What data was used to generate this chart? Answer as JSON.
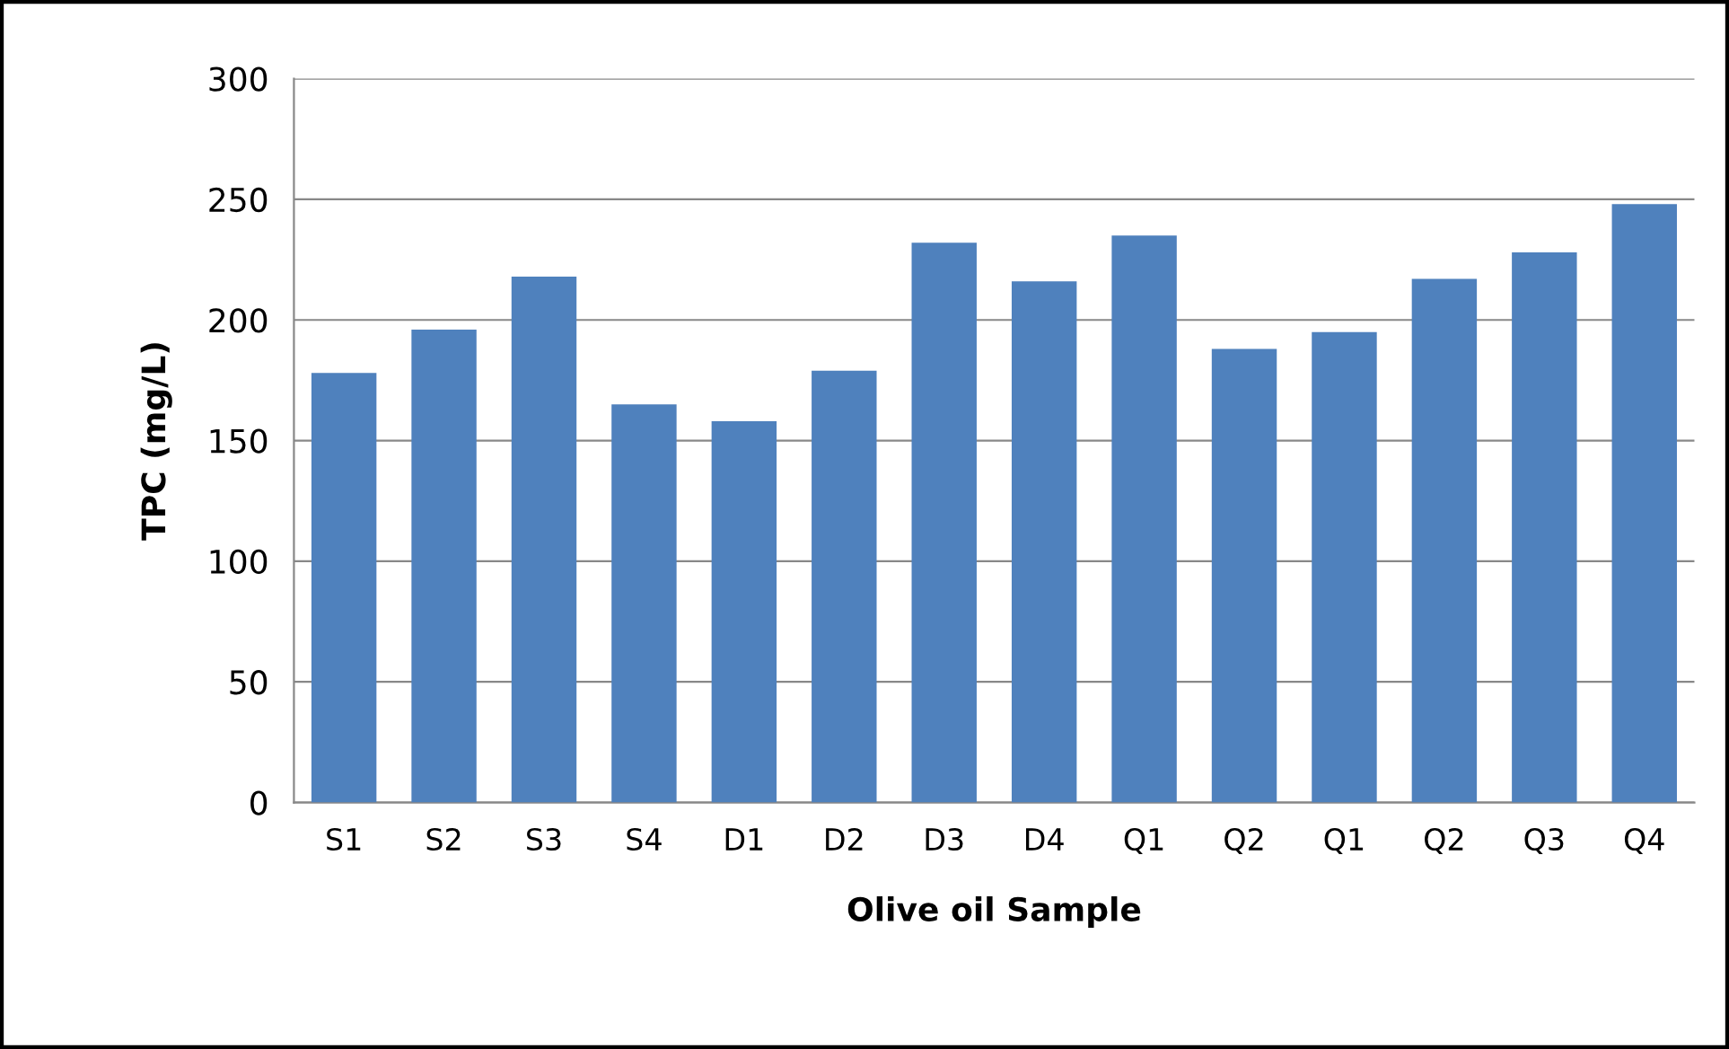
{
  "chart_data": {
    "type": "bar",
    "xlabel": "Olive oil Sample",
    "ylabel": "TPC (mg/L)",
    "categories": [
      "S1",
      "S2",
      "S3",
      "S4",
      "D1",
      "D2",
      "D3",
      "D4",
      "Q1",
      "Q2",
      "Q1",
      "Q2",
      "Q3",
      "Q4"
    ],
    "values": [
      178,
      196,
      218,
      165,
      158,
      179,
      232,
      216,
      235,
      188,
      195,
      217,
      228,
      248
    ],
    "color": "#4f81bd",
    "ylim": [
      0,
      300
    ],
    "yticks": [
      0,
      50,
      100,
      150,
      200,
      250,
      300
    ],
    "grid": "y",
    "legend": false
  }
}
